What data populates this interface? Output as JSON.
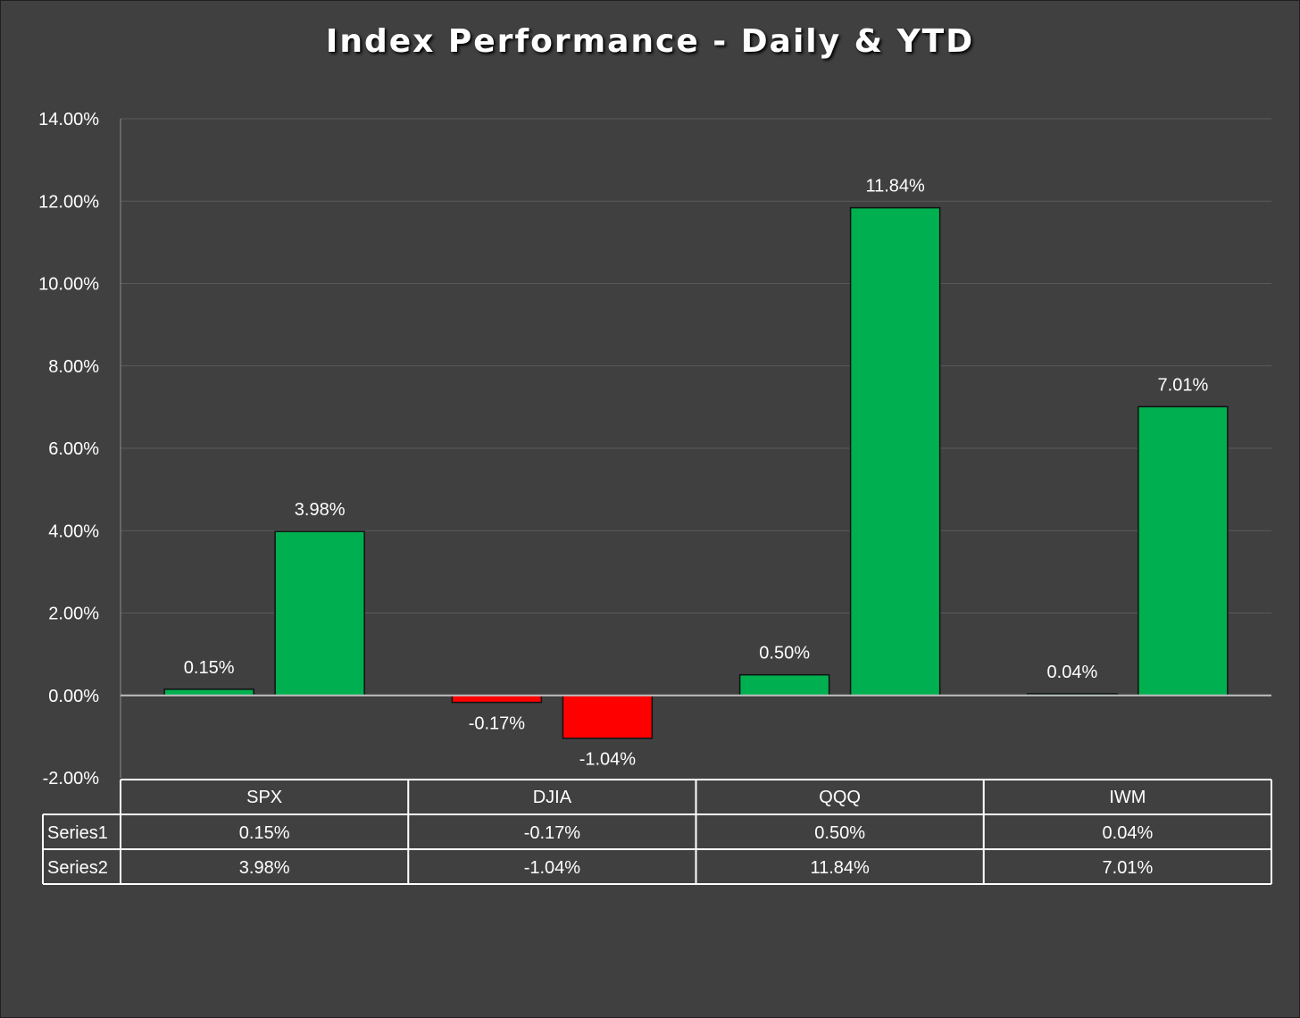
{
  "chart_data": {
    "type": "bar",
    "title": "Index Performance - Daily & YTD",
    "categories": [
      "SPX",
      "DJIA",
      "QQQ",
      "IWM"
    ],
    "series": [
      {
        "name": "Series1",
        "values": [
          0.15,
          -0.17,
          0.5,
          0.04
        ],
        "labels": [
          "0.15%",
          "-0.17%",
          "0.50%",
          "0.04%"
        ]
      },
      {
        "name": "Series2",
        "values": [
          3.98,
          -1.04,
          11.84,
          7.01
        ],
        "labels": [
          "3.98%",
          "-1.04%",
          "11.84%",
          "7.01%"
        ]
      }
    ],
    "ylim": [
      -2,
      14
    ],
    "yticks": [
      {
        "value": -2,
        "label": "-2.00%"
      },
      {
        "value": 0,
        "label": "0.00%"
      },
      {
        "value": 2,
        "label": "2.00%"
      },
      {
        "value": 4,
        "label": "4.00%"
      },
      {
        "value": 6,
        "label": "6.00%"
      },
      {
        "value": 8,
        "label": "8.00%"
      },
      {
        "value": 10,
        "label": "10.00%"
      },
      {
        "value": 12,
        "label": "12.00%"
      },
      {
        "value": 14,
        "label": "14.00%"
      }
    ],
    "grid": true,
    "data_table": true,
    "colors": {
      "positive": "#00b050",
      "negative": "#ff0000",
      "background": "#404040",
      "gridline": "#5a5a5a",
      "text": "#ffffff"
    }
  }
}
